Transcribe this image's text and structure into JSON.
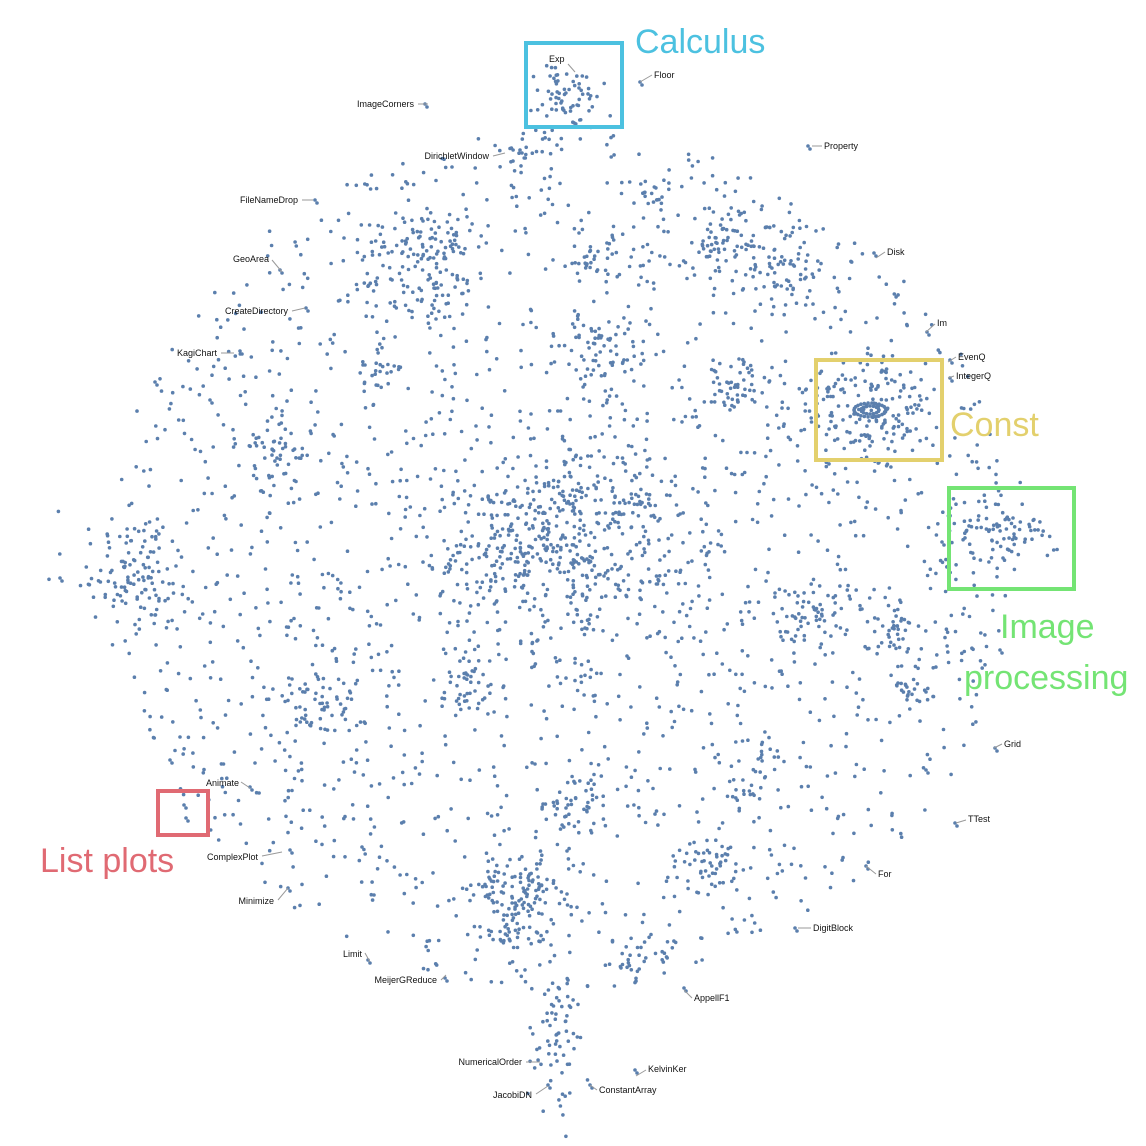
{
  "colors": {
    "points": "#5b7fad",
    "calculus": "#4cc1e0",
    "const": "#e3d06d",
    "image_processing": "#74e474",
    "list_plots": "#e06a73"
  },
  "regions": [
    {
      "key": "calculus",
      "label": "Calculus",
      "color": "#4cc1e0"
    },
    {
      "key": "const",
      "label": "Const",
      "color": "#e3d06d"
    },
    {
      "key": "image_processing",
      "label_line1": "Image",
      "label_line2": "processing",
      "color": "#74e474"
    },
    {
      "key": "list_plots",
      "label": "List plots",
      "color": "#e06a73"
    }
  ],
  "chart_data": {
    "type": "scatter",
    "title": "",
    "xlabel": "",
    "ylabel": "",
    "grid": false,
    "annotations": [
      "Exp",
      "Floor",
      "ImageCorners",
      "DirichletWindow",
      "Property",
      "FileNameDrop",
      "GeoArea",
      "Disk",
      "CreateDirectory",
      "Im",
      "KagiChart",
      "EvenQ",
      "IntegerQ",
      "Grid",
      "Animate",
      "TTest",
      "ComplexPlot",
      "For",
      "Minimize",
      "DigitBlock",
      "Limit",
      "MeijerGReduce",
      "AppellF1",
      "KelvinKer",
      "NumericalOrder",
      "JacobiDN",
      "ConstantArray"
    ]
  }
}
